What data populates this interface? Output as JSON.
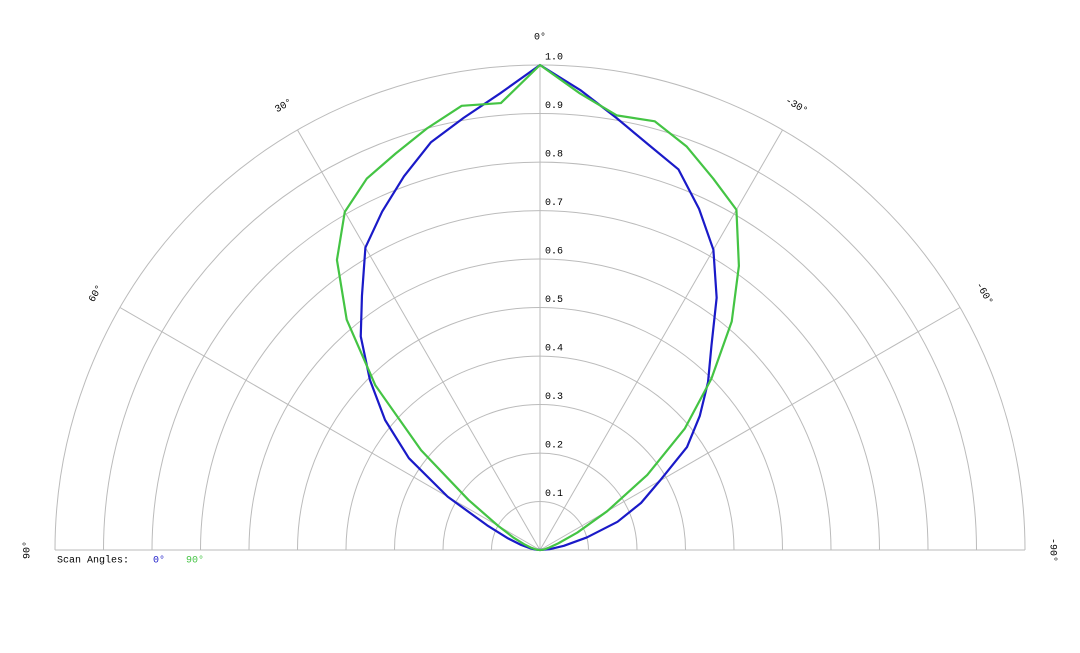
{
  "chart_data": {
    "type": "polar",
    "legend_title": "Scan Angles:",
    "theta": [
      -90,
      -85,
      -80,
      -75,
      -70,
      -65,
      -60,
      -55,
      -50,
      -45,
      -40,
      -35,
      -30,
      -25,
      -20,
      -15,
      -10,
      -5,
      0,
      5,
      10,
      15,
      20,
      25,
      30,
      35,
      40,
      45,
      50,
      55,
      60,
      65,
      70,
      75,
      80,
      85,
      90
    ],
    "series": [
      {
        "name": "0°",
        "color": "#1a1ac8",
        "values": [
          0,
          0.02,
          0.05,
          0.1,
          0.17,
          0.23,
          0.285,
          0.37,
          0.43,
          0.49,
          0.55,
          0.635,
          0.715,
          0.776,
          0.835,
          0.865,
          0.905,
          0.952,
          1.0,
          0.945,
          0.905,
          0.87,
          0.82,
          0.77,
          0.72,
          0.64,
          0.575,
          0.496,
          0.417,
          0.33,
          0.22,
          0.12,
          0.07,
          0.04,
          0.02,
          0.01,
          0
        ]
      },
      {
        "name": "90°",
        "color": "#44c444",
        "values": [
          0,
          0.005,
          0.01,
          0.02,
          0.04,
          0.085,
          0.16,
          0.27,
          0.39,
          0.5,
          0.615,
          0.715,
          0.81,
          0.845,
          0.885,
          0.915,
          0.91,
          0.945,
          1.0,
          0.925,
          0.93,
          0.9,
          0.87,
          0.845,
          0.805,
          0.73,
          0.62,
          0.48,
          0.32,
          0.18,
          0.1,
          0.06,
          0.035,
          0.02,
          0.01,
          0.005,
          0
        ]
      }
    ],
    "rlim": [
      0,
      1
    ],
    "rticks": [
      0.1,
      0.2,
      0.3,
      0.4,
      0.5,
      0.6,
      0.7,
      0.8,
      0.9,
      {
        "value": 1,
        "label": "1.0"
      }
    ],
    "thetaticks": [
      {
        "value": 90,
        "label": "90°"
      },
      {
        "value": 60,
        "label": "60°"
      },
      {
        "value": 30,
        "label": "30°"
      },
      {
        "value": 0,
        "label": "0°"
      },
      {
        "value": -30,
        "label": "-30°"
      },
      {
        "value": -60,
        "label": "-60°"
      },
      {
        "value": -90,
        "label": "-90°"
      }
    ]
  }
}
